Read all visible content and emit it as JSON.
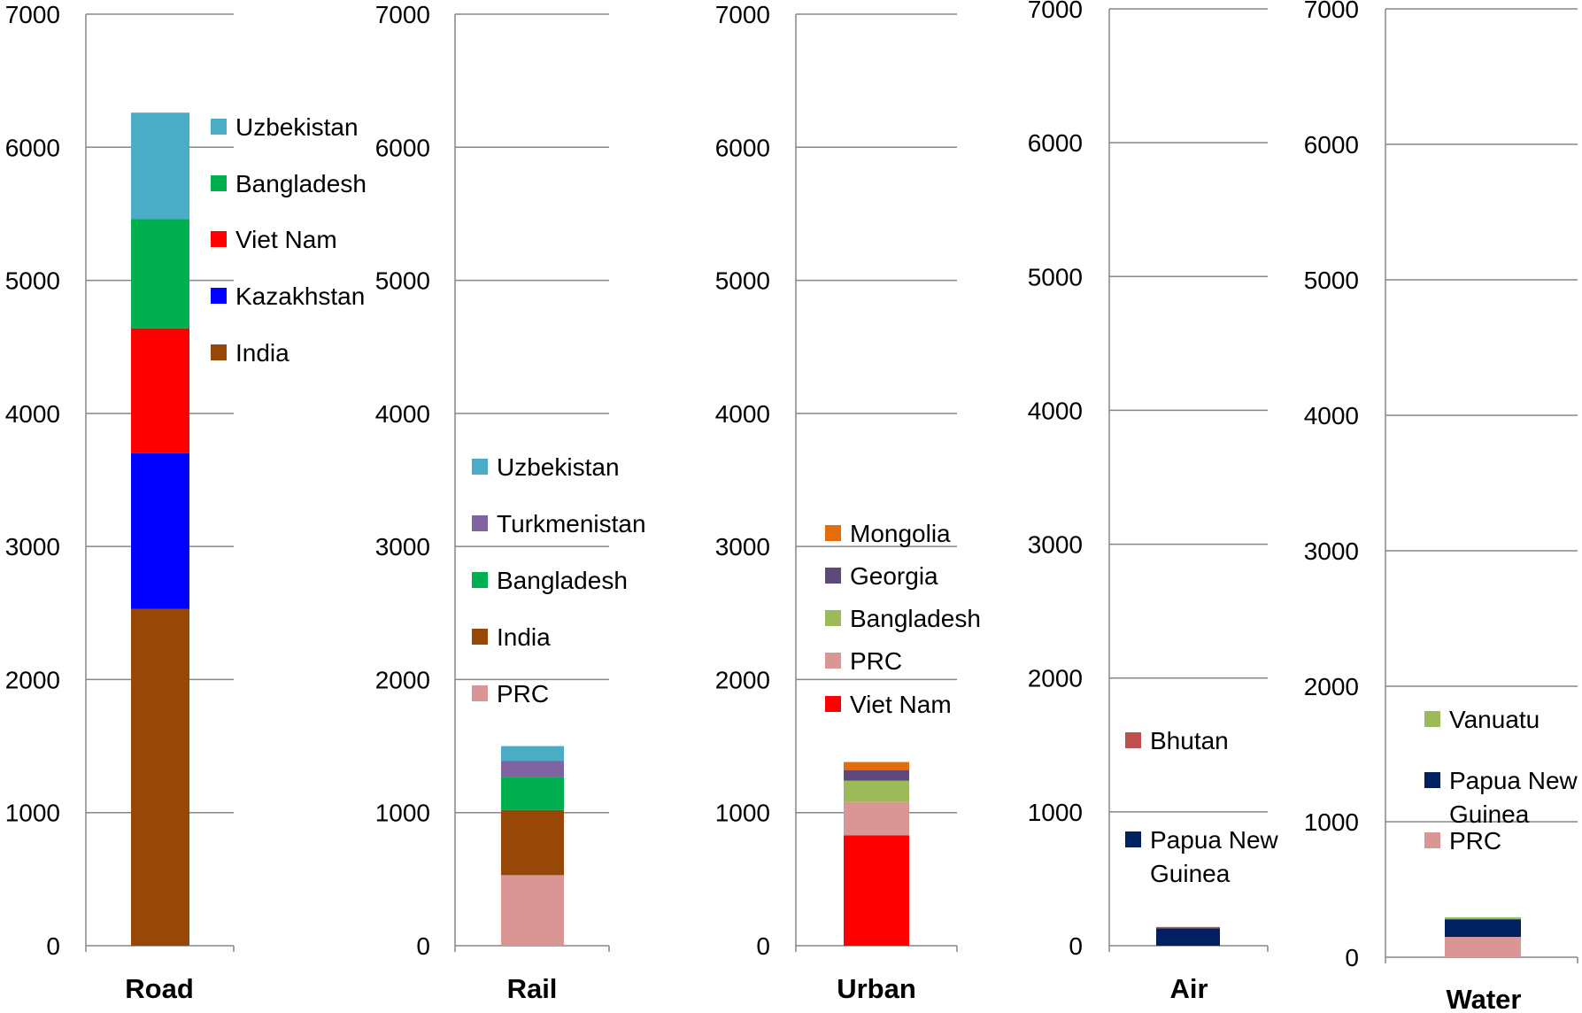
{
  "colors": {
    "brown": "#974706",
    "blue": "#0000FF",
    "red": "#FF0000",
    "green": "#00B050",
    "teal": "#4BACC6",
    "purple": "#8064A2",
    "pink": "#D99694",
    "lightgreen": "#9BBB59",
    "darkpurple": "#5F497A",
    "orange": "#E46C0A",
    "darkred": "#C0504D",
    "navy": "#002060"
  },
  "chart_data": [
    {
      "type": "bar",
      "stacked": true,
      "categories": [
        "Road"
      ],
      "ylim": [
        0,
        7000
      ],
      "yticks": [
        "0",
        "1000",
        "2000",
        "3000",
        "4000",
        "5000",
        "6000",
        "7000"
      ],
      "grid": true,
      "legend_position": "right",
      "series": [
        {
          "name": "India",
          "values": [
            2530
          ],
          "color": "#974706"
        },
        {
          "name": "Kazakhstan",
          "values": [
            1170
          ],
          "color": "#0000FF"
        },
        {
          "name": "Viet Nam",
          "values": [
            940
          ],
          "color": "#FF0000"
        },
        {
          "name": "Bangladesh",
          "values": [
            820
          ],
          "color": "#00B050"
        },
        {
          "name": "Uzbekistan",
          "values": [
            800
          ],
          "color": "#4BACC6"
        }
      ]
    },
    {
      "type": "bar",
      "stacked": true,
      "categories": [
        "Rail"
      ],
      "ylim": [
        0,
        7000
      ],
      "yticks": [
        "0",
        "1000",
        "2000",
        "3000",
        "4000",
        "5000",
        "6000",
        "7000"
      ],
      "grid": true,
      "legend_position": "right",
      "series": [
        {
          "name": "PRC",
          "values": [
            530
          ],
          "color": "#D99694"
        },
        {
          "name": "India",
          "values": [
            490
          ],
          "color": "#974706"
        },
        {
          "name": "Bangladesh",
          "values": [
            250
          ],
          "color": "#00B050"
        },
        {
          "name": "Turkmenistan",
          "values": [
            120
          ],
          "color": "#8064A2"
        },
        {
          "name": "Uzbekistan",
          "values": [
            110
          ],
          "color": "#4BACC6"
        }
      ]
    },
    {
      "type": "bar",
      "stacked": true,
      "categories": [
        "Urban"
      ],
      "ylim": [
        0,
        7000
      ],
      "yticks": [
        "0",
        "1000",
        "2000",
        "3000",
        "4000",
        "5000",
        "6000",
        "7000"
      ],
      "grid": true,
      "legend_position": "right",
      "series": [
        {
          "name": "Viet Nam",
          "values": [
            830
          ],
          "color": "#FF0000"
        },
        {
          "name": "PRC",
          "values": [
            250
          ],
          "color": "#D99694"
        },
        {
          "name": "Bangladesh",
          "values": [
            160
          ],
          "color": "#9BBB59"
        },
        {
          "name": "Georgia",
          "values": [
            80
          ],
          "color": "#5F497A"
        },
        {
          "name": "Mongolia",
          "values": [
            60
          ],
          "color": "#E46C0A"
        }
      ]
    },
    {
      "type": "bar",
      "stacked": true,
      "categories": [
        "Air"
      ],
      "ylim": [
        0,
        7000
      ],
      "yticks": [
        "0",
        "1000",
        "2000",
        "3000",
        "4000",
        "5000",
        "6000",
        "7000"
      ],
      "grid": true,
      "legend_position": "right",
      "series": [
        {
          "name": "Papua New Guinea",
          "values": [
            130
          ],
          "color": "#002060"
        },
        {
          "name": "Bhutan",
          "values": [
            10
          ],
          "color": "#C0504D"
        }
      ]
    },
    {
      "type": "bar",
      "stacked": true,
      "categories": [
        "Water"
      ],
      "ylim": [
        0,
        7000
      ],
      "yticks": [
        "0",
        "1000",
        "2000",
        "3000",
        "4000",
        "5000",
        "6000",
        "7000"
      ],
      "grid": true,
      "legend_position": "right",
      "series": [
        {
          "name": "PRC",
          "values": [
            150
          ],
          "color": "#D99694"
        },
        {
          "name": "Papua New Guinea",
          "values": [
            130
          ],
          "color": "#002060"
        },
        {
          "name": "Vanuatu",
          "values": [
            15
          ],
          "color": "#9BBB59"
        }
      ]
    }
  ]
}
